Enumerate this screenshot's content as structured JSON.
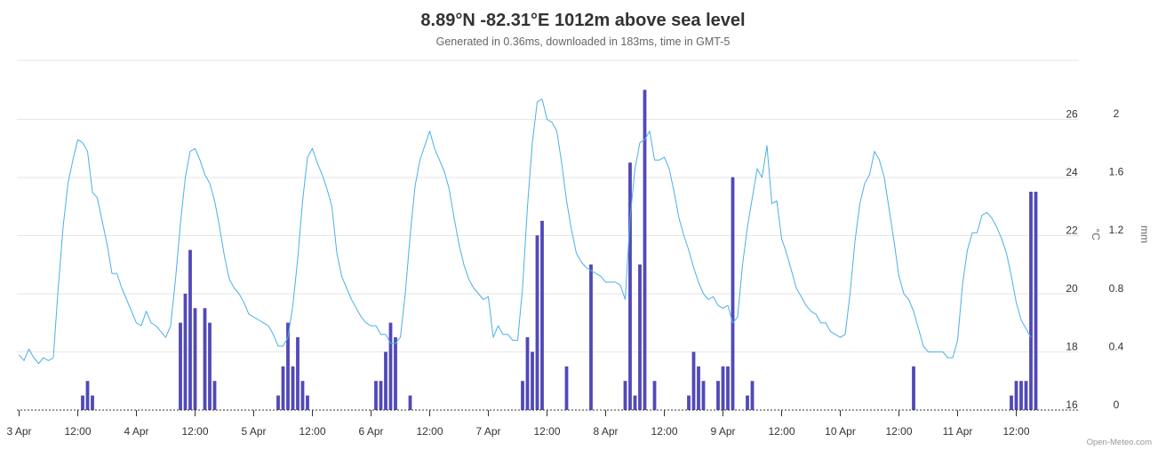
{
  "title": "8.89°N -82.31°E 1012m above sea level",
  "subtitle": "Generated in 0.36ms, downloaded in 183ms, time in GMT-5",
  "credits": "Open-Meteo.com",
  "chart_data": {
    "type": "line+bar",
    "x_unit": "hours since 3 Apr 00:00 (GMT-5)",
    "x_ticks": [
      {
        "h": 0,
        "label": "3 Apr"
      },
      {
        "h": 12,
        "label": "12:00"
      },
      {
        "h": 24,
        "label": "4 Apr"
      },
      {
        "h": 36,
        "label": "12:00"
      },
      {
        "h": 48,
        "label": "5 Apr"
      },
      {
        "h": 60,
        "label": "12:00"
      },
      {
        "h": 72,
        "label": "6 Apr"
      },
      {
        "h": 84,
        "label": "12:00"
      },
      {
        "h": 96,
        "label": "7 Apr"
      },
      {
        "h": 108,
        "label": "12:00"
      },
      {
        "h": 120,
        "label": "8 Apr"
      },
      {
        "h": 132,
        "label": "12:00"
      },
      {
        "h": 144,
        "label": "9 Apr"
      },
      {
        "h": 156,
        "label": "12:00"
      },
      {
        "h": 168,
        "label": "10 Apr"
      },
      {
        "h": 180,
        "label": "12:00"
      },
      {
        "h": 192,
        "label": "11 Apr"
      },
      {
        "h": 204,
        "label": "12:00"
      }
    ],
    "xlim": [
      0,
      216
    ],
    "temperature_axis": {
      "label": "°C",
      "ticks": [
        16,
        18,
        20,
        22,
        24,
        26
      ],
      "ylim": [
        16,
        28
      ]
    },
    "precipitation_axis": {
      "label": "mm",
      "ticks": [
        "0",
        "0.4",
        "0.8",
        "1.2",
        "1.6",
        "2"
      ],
      "ylim": [
        0,
        2.4
      ]
    },
    "colors": {
      "temperature": "#4ab0e6",
      "precipitation": "#5149b8"
    },
    "temperature_line": [
      [
        0,
        17.9
      ],
      [
        1,
        17.7
      ],
      [
        2,
        18.1
      ],
      [
        3,
        17.8
      ],
      [
        4,
        17.6
      ],
      [
        5,
        17.8
      ],
      [
        6,
        17.7
      ],
      [
        7,
        17.8
      ],
      [
        8,
        20.2
      ],
      [
        9,
        22.3
      ],
      [
        10,
        23.8
      ],
      [
        11,
        24.6
      ],
      [
        12,
        25.3
      ],
      [
        13,
        25.2
      ],
      [
        14,
        24.9
      ],
      [
        15,
        23.5
      ],
      [
        16,
        23.3
      ],
      [
        17,
        22.5
      ],
      [
        18,
        21.7
      ],
      [
        19,
        20.7
      ],
      [
        20,
        20.7
      ],
      [
        21,
        20.2
      ],
      [
        22,
        19.8
      ],
      [
        23,
        19.4
      ],
      [
        24,
        19.0
      ],
      [
        25,
        18.9
      ],
      [
        26,
        19.4
      ],
      [
        27,
        19.0
      ],
      [
        28,
        18.9
      ],
      [
        29,
        18.7
      ],
      [
        30,
        18.5
      ],
      [
        31,
        18.9
      ],
      [
        32,
        20.5
      ],
      [
        33,
        22.4
      ],
      [
        34,
        24.0
      ],
      [
        35,
        24.9
      ],
      [
        36,
        25.0
      ],
      [
        37,
        24.6
      ],
      [
        38,
        24.1
      ],
      [
        39,
        23.8
      ],
      [
        40,
        23.2
      ],
      [
        41,
        22.3
      ],
      [
        42,
        21.3
      ],
      [
        43,
        20.5
      ],
      [
        44,
        20.2
      ],
      [
        45,
        20.0
      ],
      [
        46,
        19.7
      ],
      [
        47,
        19.3
      ],
      [
        48,
        19.2
      ],
      [
        49,
        19.1
      ],
      [
        50,
        19.0
      ],
      [
        51,
        18.9
      ],
      [
        52,
        18.6
      ],
      [
        53,
        18.2
      ],
      [
        54,
        18.2
      ],
      [
        55,
        18.5
      ],
      [
        56,
        19.6
      ],
      [
        57,
        21.2
      ],
      [
        58,
        23.2
      ],
      [
        59,
        24.7
      ],
      [
        60,
        25.0
      ],
      [
        61,
        24.5
      ],
      [
        62,
        24.1
      ],
      [
        63,
        23.6
      ],
      [
        64,
        23.0
      ],
      [
        65,
        21.4
      ],
      [
        66,
        20.6
      ],
      [
        67,
        20.2
      ],
      [
        68,
        19.8
      ],
      [
        69,
        19.5
      ],
      [
        70,
        19.2
      ],
      [
        71,
        19.0
      ],
      [
        72,
        18.9
      ],
      [
        73,
        18.9
      ],
      [
        74,
        18.6
      ],
      [
        75,
        18.6
      ],
      [
        76,
        18.3
      ],
      [
        77,
        18.3
      ],
      [
        78,
        18.5
      ],
      [
        79,
        20.0
      ],
      [
        80,
        22.0
      ],
      [
        81,
        23.7
      ],
      [
        82,
        24.6
      ],
      [
        83,
        25.1
      ],
      [
        84,
        25.6
      ],
      [
        85,
        25.0
      ],
      [
        86,
        24.6
      ],
      [
        87,
        24.2
      ],
      [
        88,
        23.6
      ],
      [
        89,
        22.6
      ],
      [
        90,
        21.7
      ],
      [
        91,
        21.0
      ],
      [
        92,
        20.5
      ],
      [
        93,
        20.2
      ],
      [
        94,
        20.0
      ],
      [
        95,
        19.8
      ],
      [
        96,
        19.9
      ],
      [
        97,
        18.5
      ],
      [
        98,
        18.9
      ],
      [
        99,
        18.6
      ],
      [
        100,
        18.6
      ],
      [
        101,
        18.4
      ],
      [
        102,
        18.4
      ],
      [
        103,
        20.2
      ],
      [
        104,
        23.0
      ],
      [
        105,
        25.2
      ],
      [
        106,
        26.6
      ],
      [
        107,
        26.7
      ],
      [
        108,
        26.0
      ],
      [
        109,
        25.9
      ],
      [
        110,
        25.6
      ],
      [
        111,
        24.5
      ],
      [
        112,
        23.2
      ],
      [
        113,
        22.2
      ],
      [
        114,
        21.4
      ],
      [
        115,
        21.1
      ],
      [
        116,
        20.9
      ],
      [
        117,
        20.8
      ],
      [
        118,
        20.7
      ],
      [
        119,
        20.6
      ],
      [
        120,
        20.4
      ],
      [
        121,
        20.4
      ],
      [
        122,
        20.4
      ],
      [
        123,
        20.3
      ],
      [
        124,
        19.8
      ],
      [
        125,
        22.6
      ],
      [
        126,
        24.3
      ],
      [
        127,
        25.2
      ],
      [
        128,
        25.3
      ],
      [
        129,
        25.6
      ],
      [
        130,
        24.6
      ],
      [
        131,
        24.6
      ],
      [
        132,
        24.7
      ],
      [
        133,
        24.3
      ],
      [
        134,
        23.5
      ],
      [
        135,
        22.6
      ],
      [
        136,
        22.0
      ],
      [
        137,
        21.5
      ],
      [
        138,
        20.9
      ],
      [
        139,
        20.4
      ],
      [
        140,
        20.0
      ],
      [
        141,
        19.8
      ],
      [
        142,
        19.9
      ],
      [
        143,
        19.6
      ],
      [
        144,
        19.5
      ],
      [
        145,
        19.6
      ],
      [
        146,
        19.0
      ],
      [
        147,
        19.2
      ],
      [
        148,
        21.0
      ],
      [
        149,
        22.3
      ],
      [
        150,
        23.3
      ],
      [
        151,
        24.3
      ],
      [
        152,
        24.0
      ],
      [
        153,
        25.1
      ],
      [
        154,
        23.1
      ],
      [
        155,
        23.2
      ],
      [
        156,
        21.9
      ],
      [
        157,
        21.4
      ],
      [
        158,
        20.8
      ],
      [
        159,
        20.2
      ],
      [
        160,
        19.9
      ],
      [
        161,
        19.6
      ],
      [
        162,
        19.4
      ],
      [
        163,
        19.3
      ],
      [
        164,
        19.0
      ],
      [
        165,
        19.0
      ],
      [
        166,
        18.7
      ],
      [
        167,
        18.6
      ],
      [
        168,
        18.5
      ],
      [
        169,
        18.6
      ],
      [
        170,
        20.0
      ],
      [
        171,
        21.8
      ],
      [
        172,
        23.1
      ],
      [
        173,
        23.8
      ],
      [
        174,
        24.1
      ],
      [
        175,
        24.9
      ],
      [
        176,
        24.6
      ],
      [
        177,
        24.0
      ],
      [
        178,
        22.9
      ],
      [
        179,
        21.8
      ],
      [
        180,
        20.6
      ],
      [
        181,
        20.0
      ],
      [
        182,
        19.8
      ],
      [
        183,
        19.4
      ],
      [
        184,
        18.8
      ],
      [
        185,
        18.2
      ],
      [
        186,
        18.0
      ],
      [
        187,
        18.0
      ],
      [
        188,
        18.0
      ],
      [
        189,
        18.0
      ],
      [
        190,
        17.8
      ],
      [
        191,
        17.8
      ],
      [
        192,
        18.4
      ],
      [
        193,
        20.3
      ],
      [
        194,
        21.5
      ],
      [
        195,
        22.1
      ],
      [
        196,
        22.1
      ],
      [
        197,
        22.7
      ],
      [
        198,
        22.8
      ],
      [
        199,
        22.6
      ],
      [
        200,
        22.3
      ],
      [
        201,
        21.9
      ],
      [
        202,
        21.4
      ],
      [
        203,
        20.6
      ],
      [
        204,
        19.7
      ],
      [
        205,
        19.1
      ],
      [
        206,
        18.8
      ],
      [
        207,
        18.5
      ]
    ],
    "precipitation_bars": [
      [
        13,
        0.1
      ],
      [
        14,
        0.2
      ],
      [
        15,
        0.1
      ],
      [
        33,
        0.6
      ],
      [
        34,
        0.8
      ],
      [
        35,
        1.1
      ],
      [
        36,
        0.7
      ],
      [
        38,
        0.7
      ],
      [
        39,
        0.6
      ],
      [
        40,
        0.2
      ],
      [
        53,
        0.1
      ],
      [
        54,
        0.3
      ],
      [
        55,
        0.6
      ],
      [
        56,
        0.3
      ],
      [
        57,
        0.5
      ],
      [
        58,
        0.2
      ],
      [
        59,
        0.1
      ],
      [
        73,
        0.2
      ],
      [
        74,
        0.2
      ],
      [
        75,
        0.4
      ],
      [
        76,
        0.6
      ],
      [
        77,
        0.5
      ],
      [
        80,
        0.1
      ],
      [
        103,
        0.2
      ],
      [
        104,
        0.5
      ],
      [
        105,
        0.4
      ],
      [
        106,
        1.2
      ],
      [
        107,
        1.3
      ],
      [
        112,
        0.3
      ],
      [
        117,
        1.0
      ],
      [
        124,
        0.2
      ],
      [
        125,
        1.7
      ],
      [
        126,
        0.1
      ],
      [
        127,
        1.0
      ],
      [
        128,
        2.2
      ],
      [
        130,
        0.2
      ],
      [
        137,
        0.1
      ],
      [
        138,
        0.4
      ],
      [
        139,
        0.3
      ],
      [
        140,
        0.2
      ],
      [
        143,
        0.2
      ],
      [
        144,
        0.3
      ],
      [
        145,
        0.3
      ],
      [
        146,
        1.6
      ],
      [
        149,
        0.1
      ],
      [
        150,
        0.2
      ],
      [
        183,
        0.3
      ],
      [
        203,
        0.1
      ],
      [
        204,
        0.2
      ],
      [
        205,
        0.2
      ],
      [
        206,
        0.2
      ],
      [
        207,
        1.5
      ],
      [
        208,
        1.5
      ]
    ]
  }
}
